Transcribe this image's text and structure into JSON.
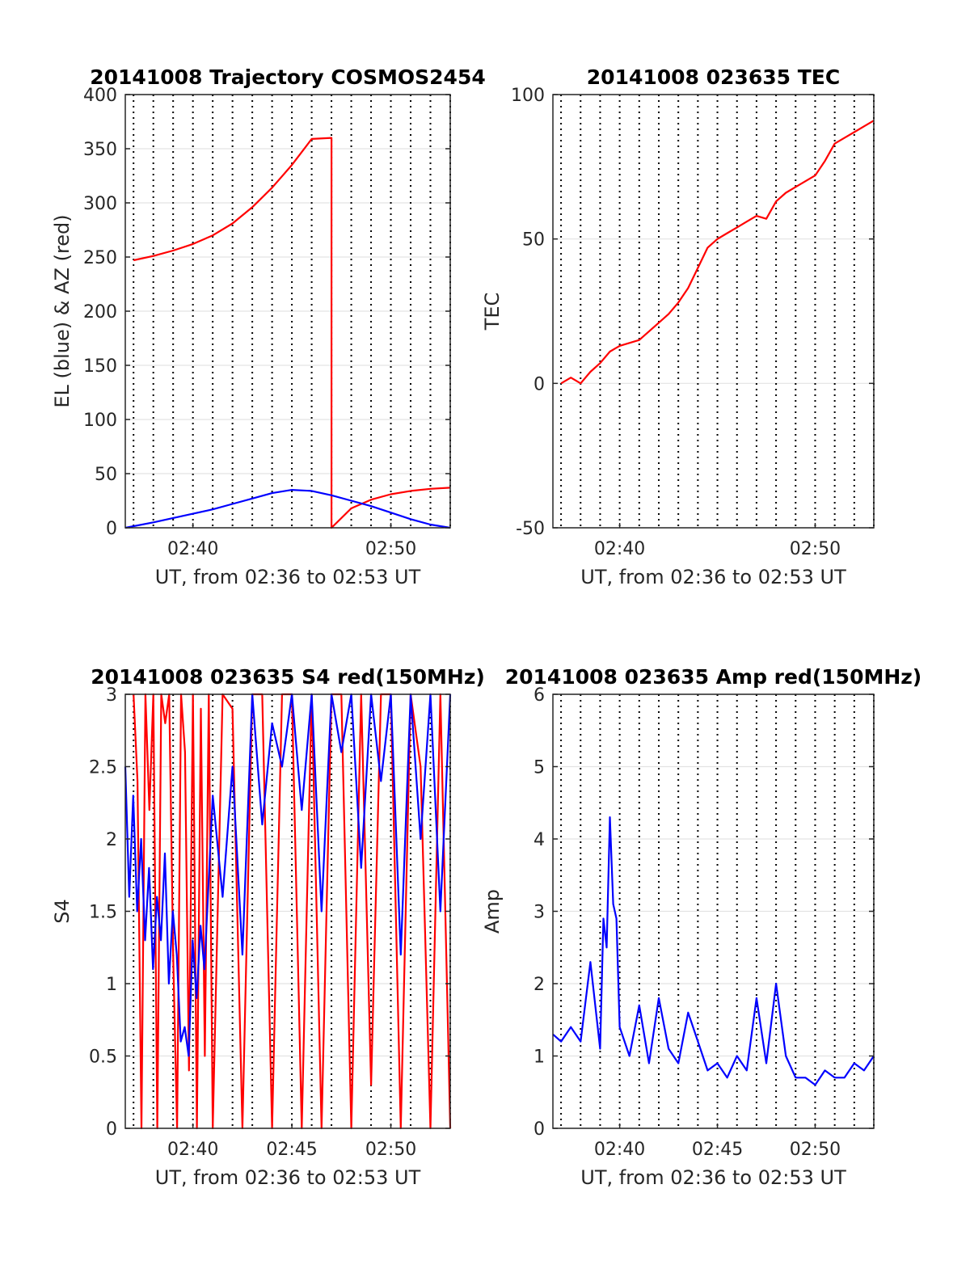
{
  "colors": {
    "az": "#ff0000",
    "el": "#0000ff",
    "tec": "#ff0000",
    "s4_red": "#ff0000",
    "s4_blue": "#0000ff",
    "amp": "#0000ff"
  },
  "chart_data": [
    {
      "type": "line",
      "title": "20141008 Trajectory COSMOS2454",
      "xlabel": "UT, from 02:36 to 02:53 UT",
      "ylabel": "EL (blue) & AZ (red)",
      "xlim": [
        "02:36:35",
        "02:53:00"
      ],
      "ylim": [
        0,
        400
      ],
      "xticks": [
        "02:40",
        "02:50"
      ],
      "yticks": [
        "0",
        "50",
        "100",
        "150",
        "200",
        "250",
        "300",
        "350",
        "400"
      ],
      "grid": true,
      "series": [
        {
          "color": "az",
          "x": [
            "02:37:00",
            "02:38:00",
            "02:39:00",
            "02:40:00",
            "02:41:00",
            "02:42:00",
            "02:43:00",
            "02:44:00",
            "02:45:00",
            "02:46:00",
            "02:47:00",
            "02:47:00.1",
            "02:48:00",
            "02:49:00",
            "02:50:00",
            "02:51:00",
            "02:52:00",
            "02:53:00"
          ],
          "y": [
            247,
            251,
            256,
            262,
            270,
            281,
            296,
            314,
            335,
            359,
            360,
            0,
            18,
            26,
            31,
            34,
            36,
            37
          ]
        },
        {
          "color": "el",
          "x": [
            "02:36:35",
            "02:38:00",
            "02:39:00",
            "02:40:00",
            "02:41:00",
            "02:42:00",
            "02:43:00",
            "02:44:00",
            "02:45:00",
            "02:46:00",
            "02:47:00",
            "02:48:00",
            "02:49:00",
            "02:50:00",
            "02:51:00",
            "02:52:00",
            "02:53:00"
          ],
          "y": [
            0,
            5,
            9,
            13,
            17,
            22,
            27,
            32,
            35,
            34,
            30,
            25,
            20,
            14,
            8,
            3,
            0
          ]
        }
      ]
    },
    {
      "type": "line",
      "title": "20141008 023635 TEC",
      "xlabel": "UT, from 02:36 to 02:53 UT",
      "ylabel": "TEC",
      "xlim": [
        "02:36:35",
        "02:53:00"
      ],
      "ylim": [
        -50,
        100
      ],
      "xticks": [
        "02:40",
        "02:50"
      ],
      "yticks": [
        "-50",
        "0",
        "50",
        "100"
      ],
      "grid": true,
      "series": [
        {
          "color": "tec",
          "x": [
            "02:37:00",
            "02:37:30",
            "02:38:00",
            "02:38:30",
            "02:39:00",
            "02:39:30",
            "02:40:00",
            "02:41:00",
            "02:42:00",
            "02:42:30",
            "02:43:00",
            "02:43:30",
            "02:44:00",
            "02:44:30",
            "02:45:00",
            "02:45:30",
            "02:46:00",
            "02:46:30",
            "02:47:00",
            "02:47:30",
            "02:48:00",
            "02:48:30",
            "02:49:00",
            "02:49:30",
            "02:50:00",
            "02:50:30",
            "02:51:00",
            "02:51:30",
            "02:52:00",
            "02:52:30",
            "02:53:00"
          ],
          "y": [
            0,
            2,
            0,
            4,
            7,
            11,
            13,
            15,
            21,
            24,
            28,
            33,
            40,
            47,
            50,
            52,
            54,
            56,
            58,
            57,
            63,
            66,
            68,
            70,
            72,
            77,
            83,
            85,
            87,
            89,
            91
          ]
        }
      ]
    },
    {
      "type": "line",
      "title": "20141008 023635 S4 red(150MHz)",
      "xlabel": "UT, from 02:36 to 02:53 UT",
      "ylabel": "S4",
      "xlim": [
        "02:36:35",
        "02:53:00"
      ],
      "ylim": [
        0,
        3
      ],
      "xticks": [
        "02:40",
        "02:45",
        "02:50"
      ],
      "yticks": [
        "0",
        "0.5",
        "1",
        "1.5",
        "2",
        "2.5",
        "3"
      ],
      "grid": true,
      "series": [
        {
          "color": "s4_red",
          "x": [
            "02:37:00",
            "02:37:12",
            "02:37:24",
            "02:37:36",
            "02:37:48",
            "02:38:00",
            "02:38:12",
            "02:38:24",
            "02:38:36",
            "02:38:48",
            "02:39:00",
            "02:39:12",
            "02:39:24",
            "02:39:36",
            "02:39:48",
            "02:40:00",
            "02:40:12",
            "02:40:24",
            "02:40:36",
            "02:40:48",
            "02:41:00",
            "02:41:30",
            "02:42:00",
            "02:42:30",
            "02:43:00",
            "02:43:30",
            "02:44:00",
            "02:44:30",
            "02:45:00",
            "02:45:30",
            "02:46:00",
            "02:46:30",
            "02:47:00",
            "02:47:30",
            "02:48:00",
            "02:48:30",
            "02:49:00",
            "02:49:30",
            "02:50:00",
            "02:50:30",
            "02:51:00",
            "02:51:30",
            "02:52:00",
            "02:52:30",
            "02:53:00"
          ],
          "y": [
            3,
            2.4,
            0,
            3,
            2.2,
            3,
            0,
            3,
            2.8,
            3,
            1.2,
            0,
            3,
            2.6,
            0.4,
            3,
            0,
            2.9,
            0.5,
            3,
            0,
            3,
            2.9,
            0,
            3,
            3,
            0,
            3,
            3,
            0,
            3,
            0,
            3,
            3,
            0,
            3,
            0.3,
            3,
            3,
            0,
            3,
            2.5,
            0,
            3,
            0
          ]
        },
        {
          "color": "s4_blue",
          "x": [
            "02:36:35",
            "02:36:47",
            "02:36:59",
            "02:37:11",
            "02:37:23",
            "02:37:35",
            "02:37:47",
            "02:37:59",
            "02:38:11",
            "02:38:23",
            "02:38:35",
            "02:38:47",
            "02:38:59",
            "02:39:11",
            "02:39:23",
            "02:39:35",
            "02:39:47",
            "02:39:59",
            "02:40:11",
            "02:40:23",
            "02:40:35",
            "02:41:00",
            "02:41:30",
            "02:42:00",
            "02:42:30",
            "02:43:00",
            "02:43:30",
            "02:44:00",
            "02:44:30",
            "02:45:00",
            "02:45:30",
            "02:46:00",
            "02:46:30",
            "02:47:00",
            "02:47:30",
            "02:48:00",
            "02:48:30",
            "02:49:00",
            "02:49:30",
            "02:50:00",
            "02:50:30",
            "02:51:00",
            "02:51:30",
            "02:52:00",
            "02:52:30",
            "02:53:00"
          ],
          "y": [
            2.5,
            1.6,
            2.3,
            1.5,
            2.0,
            1.3,
            1.8,
            1.1,
            1.6,
            1.3,
            1.9,
            1.0,
            1.5,
            1.2,
            0.6,
            0.7,
            0.5,
            1.3,
            0.9,
            1.4,
            1.1,
            2.3,
            1.6,
            2.5,
            1.2,
            3,
            2.1,
            2.8,
            2.5,
            3,
            2.2,
            3,
            1.5,
            3,
            2.6,
            3,
            1.8,
            3,
            2.4,
            3,
            1.2,
            3,
            2.0,
            3,
            1.5,
            3
          ]
        }
      ]
    },
    {
      "type": "line",
      "title": "20141008 023635 Amp red(150MHz)",
      "xlabel": "UT, from 02:36 to 02:53 UT",
      "ylabel": "Amp",
      "xlim": [
        "02:36:35",
        "02:53:00"
      ],
      "ylim": [
        0,
        6
      ],
      "xticks": [
        "02:40",
        "02:45",
        "02:50"
      ],
      "yticks": [
        "0",
        "1",
        "2",
        "3",
        "4",
        "5",
        "6"
      ],
      "grid": true,
      "series": [
        {
          "color": "amp",
          "x": [
            "02:36:35",
            "02:37:00",
            "02:37:30",
            "02:38:00",
            "02:38:30",
            "02:39:00",
            "02:39:10",
            "02:39:20",
            "02:39:30",
            "02:39:40",
            "02:39:50",
            "02:40:00",
            "02:40:30",
            "02:41:00",
            "02:41:30",
            "02:42:00",
            "02:42:30",
            "02:43:00",
            "02:43:30",
            "02:44:00",
            "02:44:30",
            "02:45:00",
            "02:45:30",
            "02:46:00",
            "02:46:30",
            "02:47:00",
            "02:47:30",
            "02:48:00",
            "02:48:30",
            "02:49:00",
            "02:49:30",
            "02:50:00",
            "02:50:30",
            "02:51:00",
            "02:51:30",
            "02:52:00",
            "02:52:30",
            "02:53:00"
          ],
          "y": [
            1.3,
            1.2,
            1.4,
            1.2,
            2.3,
            1.1,
            2.9,
            2.5,
            4.3,
            3.1,
            2.9,
            1.4,
            1.0,
            1.7,
            0.9,
            1.8,
            1.1,
            0.9,
            1.6,
            1.2,
            0.8,
            0.9,
            0.7,
            1.0,
            0.8,
            1.8,
            0.9,
            2.0,
            1.0,
            0.7,
            0.7,
            0.6,
            0.8,
            0.7,
            0.7,
            0.9,
            0.8,
            1.0
          ]
        }
      ]
    }
  ]
}
